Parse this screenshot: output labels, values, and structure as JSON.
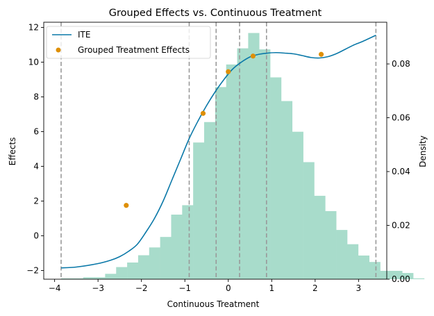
{
  "chart_data": {
    "type": "line",
    "title": "Grouped Effects vs. Continuous Treatment",
    "xlabel": "Continuous Treatment",
    "ylabel": "Effects",
    "y2label": "Density",
    "xlim": [
      -4.25,
      3.65
    ],
    "ylim": [
      -2.5,
      12.3
    ],
    "y2lim": [
      0,
      0.0955
    ],
    "xticks": [
      -4,
      -3,
      -2,
      -1,
      0,
      1,
      2,
      3
    ],
    "yticks": [
      -2,
      0,
      2,
      4,
      6,
      8,
      10,
      12
    ],
    "y2ticks": [
      0.0,
      0.02,
      0.04,
      0.06,
      0.08
    ],
    "y2tick_labels": [
      "0.00",
      "0.02",
      "0.04",
      "0.06",
      "0.08"
    ],
    "legend_position": "upper-left",
    "grid": false,
    "series": [
      {
        "name": "ITE",
        "kind": "line",
        "color": "#0a78a8",
        "x": [
          -3.85,
          -3.5,
          -3.0,
          -2.7,
          -2.5,
          -2.3,
          -2.1,
          -1.9,
          -1.7,
          -1.5,
          -1.3,
          -1.1,
          -0.9,
          -0.7,
          -0.5,
          -0.3,
          -0.1,
          0.1,
          0.3,
          0.5,
          0.7,
          0.9,
          1.1,
          1.3,
          1.5,
          1.7,
          1.9,
          2.1,
          2.3,
          2.5,
          2.7,
          2.9,
          3.1,
          3.4
        ],
        "y": [
          -1.85,
          -1.8,
          -1.6,
          -1.4,
          -1.2,
          -0.9,
          -0.5,
          0.2,
          1.0,
          2.0,
          3.2,
          4.4,
          5.6,
          6.6,
          7.5,
          8.3,
          9.0,
          9.6,
          10.0,
          10.3,
          10.45,
          10.52,
          10.55,
          10.52,
          10.48,
          10.38,
          10.27,
          10.24,
          10.32,
          10.5,
          10.75,
          11.0,
          11.2,
          11.55
        ]
      },
      {
        "name": "Grouped Treatment Effects",
        "kind": "scatter",
        "color": "#de8f05",
        "x": [
          -2.35,
          -0.58,
          0.0,
          0.57,
          2.14
        ],
        "y": [
          1.75,
          7.05,
          9.45,
          10.35,
          10.45
        ]
      }
    ],
    "histogram": {
      "color": "#a8dccb",
      "axis": "right",
      "bin_start": -3.85,
      "bin_width": 0.2534,
      "density": [
        0.0003,
        0.0003,
        0.0007,
        0.0007,
        0.002,
        0.0045,
        0.0062,
        0.0089,
        0.0118,
        0.0157,
        0.024,
        0.0275,
        0.0508,
        0.0584,
        0.0714,
        0.0798,
        0.0858,
        0.0915,
        0.0854,
        0.075,
        0.0662,
        0.0548,
        0.0435,
        0.031,
        0.0253,
        0.0183,
        0.013,
        0.0088,
        0.0064,
        0.0031,
        0.0031,
        0.0023,
        0.0003
      ]
    },
    "vlines": {
      "color": "#999999",
      "style": "dashed",
      "x": [
        -3.85,
        -0.9,
        -0.28,
        0.26,
        0.88,
        3.4
      ]
    }
  }
}
